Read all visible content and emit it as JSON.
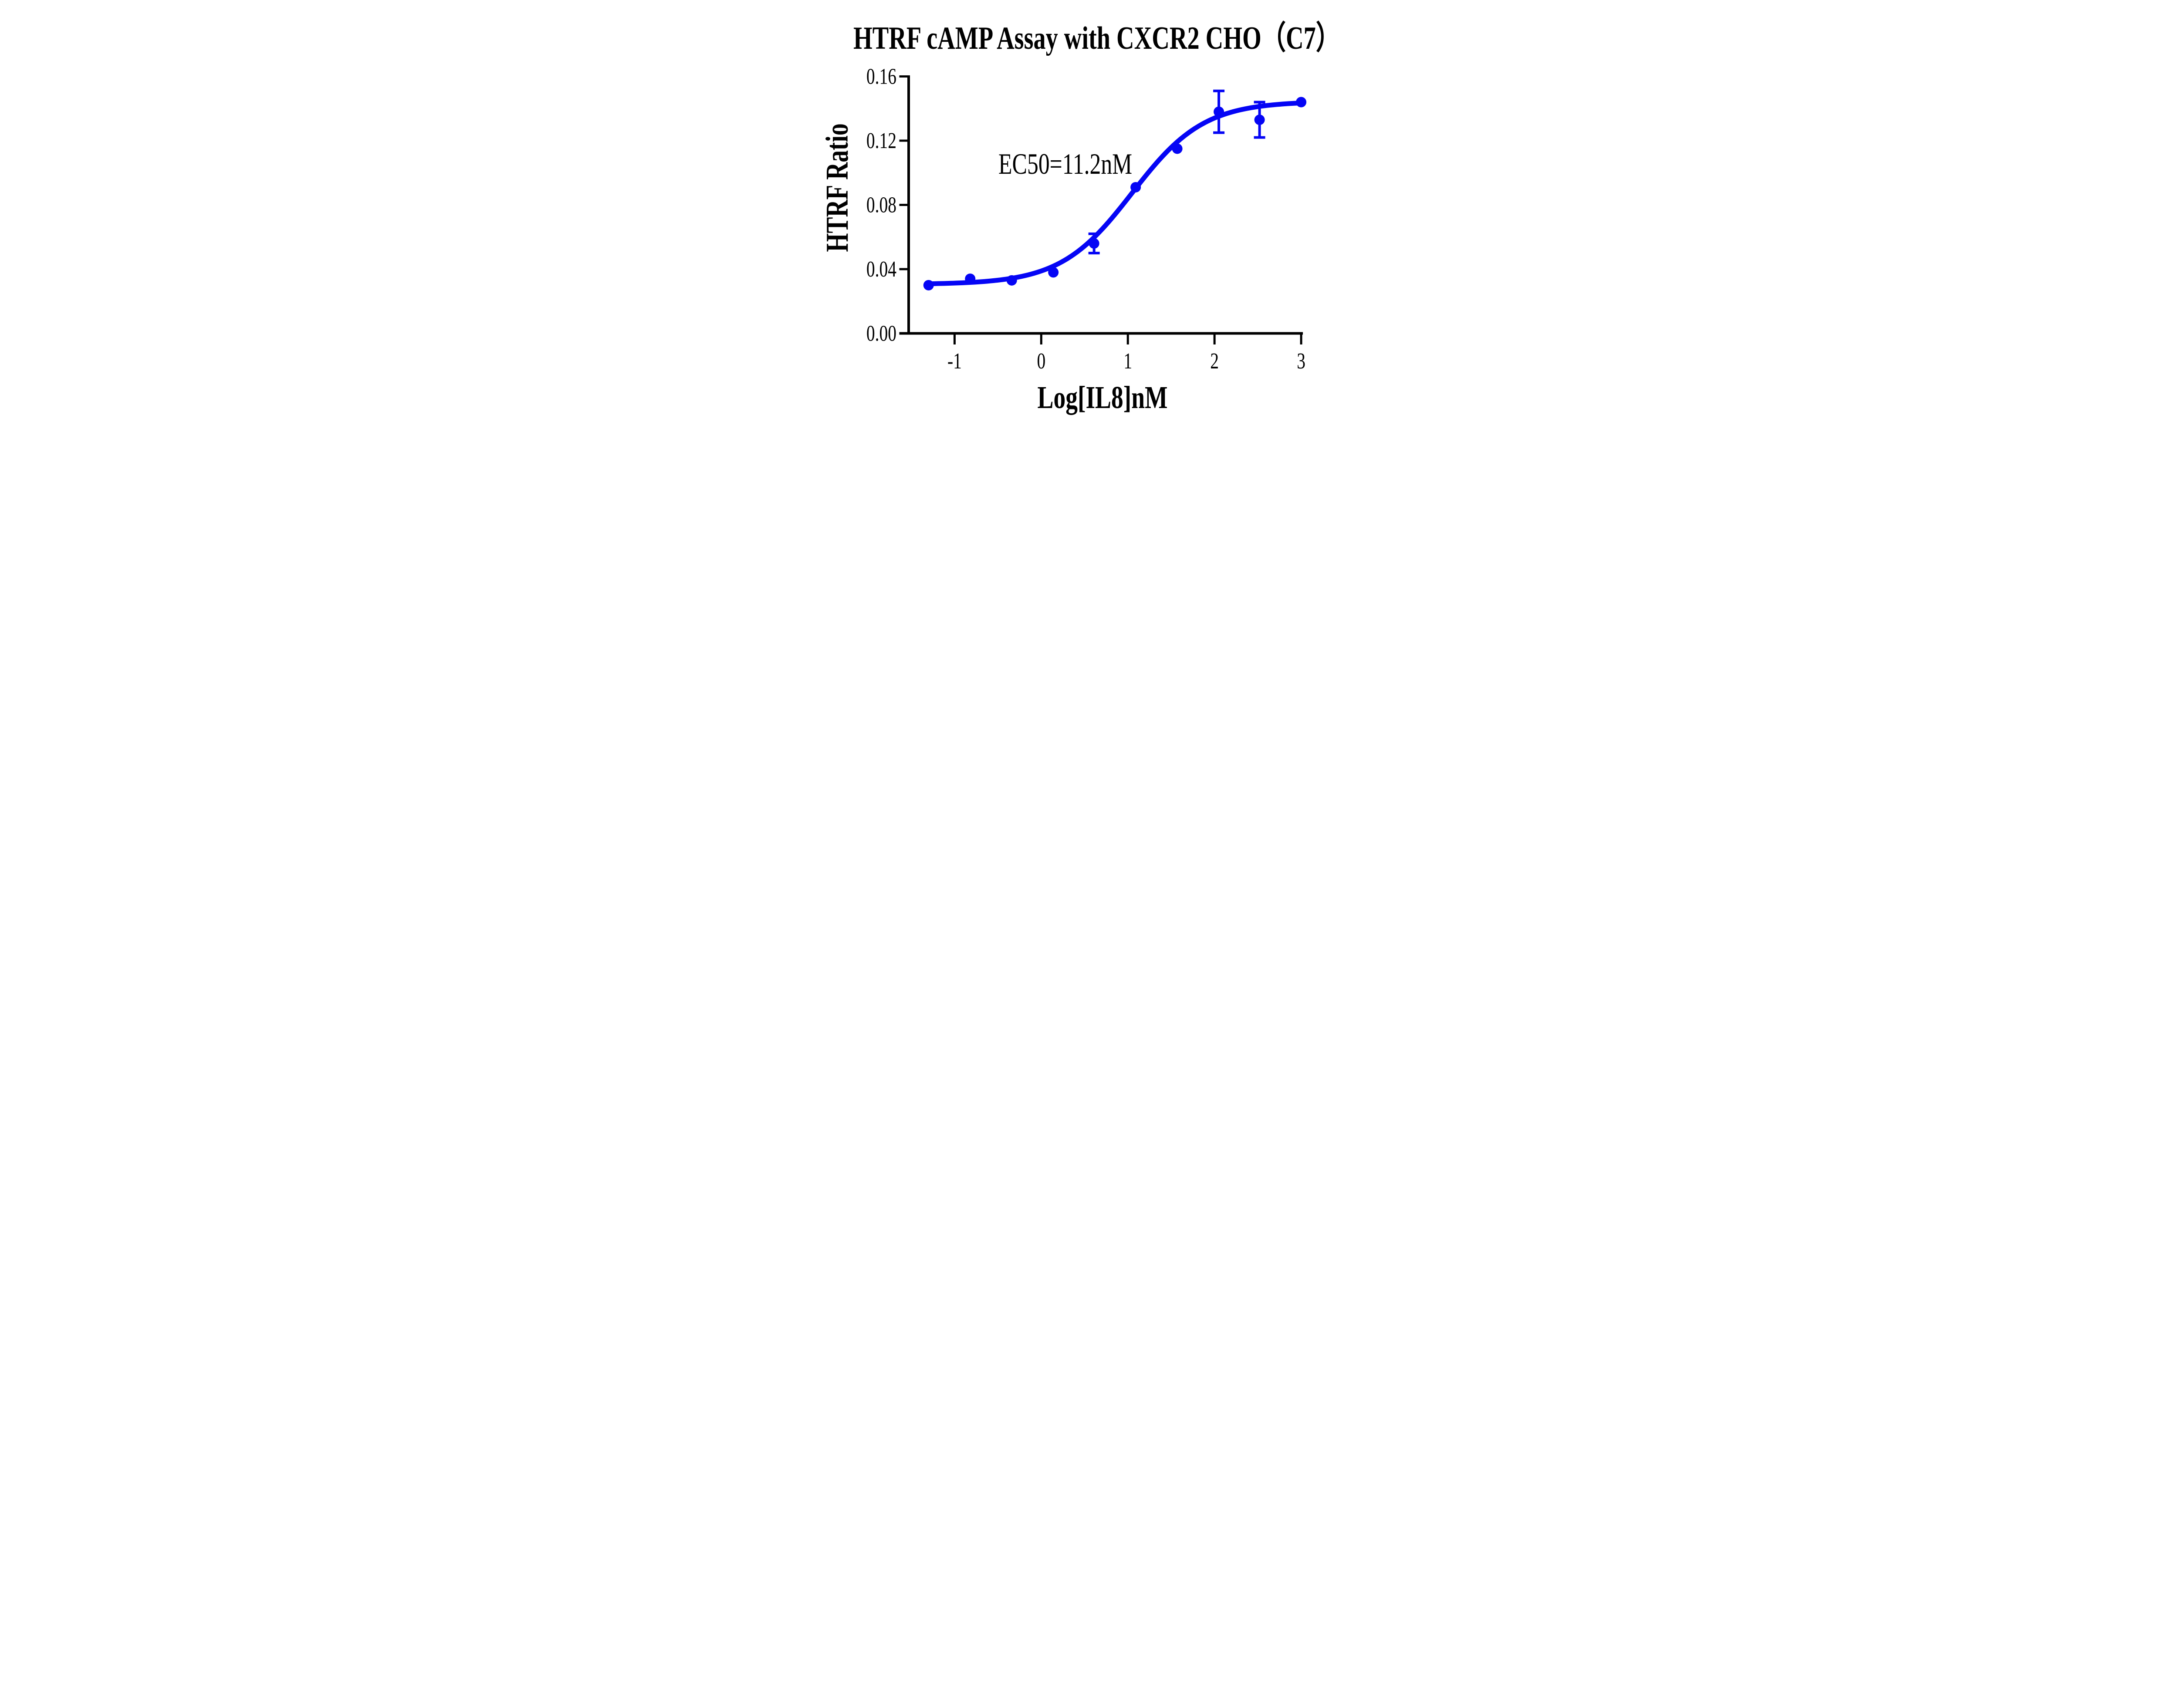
{
  "title": "HTRF cAMP Assay with CXCR2 CHO（C7）",
  "annotation": {
    "ec50": "EC50=11.2nM"
  },
  "chart_data": {
    "type": "scatter",
    "title": "HTRF cAMP Assay with CXCR2 CHO（C7）",
    "xlabel": "Log[IL8]nM",
    "ylabel": "HTRF Ratio",
    "x": [
      -1.3,
      -0.82,
      -0.34,
      0.14,
      0.61,
      1.09,
      1.57,
      2.05,
      2.52,
      3.0
    ],
    "y": [
      0.03,
      0.034,
      0.033,
      0.038,
      0.056,
      0.091,
      0.115,
      0.138,
      0.133,
      0.144
    ],
    "yerr": [
      0,
      0,
      0,
      0,
      0.006,
      0,
      0,
      0.013,
      0.011,
      0
    ],
    "x_ticks": [
      "-1",
      "0",
      "1",
      "2",
      "3"
    ],
    "x_tick_values": [
      -1,
      0,
      1,
      2,
      3
    ],
    "y_ticks": [
      "0.00",
      "0.04",
      "0.08",
      "0.12",
      "0.16"
    ],
    "y_tick_values": [
      0,
      0.04,
      0.08,
      0.12,
      0.16
    ],
    "xlim": [
      -1.53,
      3.02
    ],
    "ylim": [
      0,
      0.16
    ],
    "grid": false,
    "legend": "none",
    "fit_curve": {
      "model": "4PL",
      "bottom": 0.0305,
      "top": 0.1445,
      "logEC50": 1.05,
      "hill": 1.05
    },
    "ec50_label": "EC50=11.2nM",
    "series_color": "#0505F5",
    "axis_color": "#000000",
    "background_color": "#FFFFFF"
  }
}
